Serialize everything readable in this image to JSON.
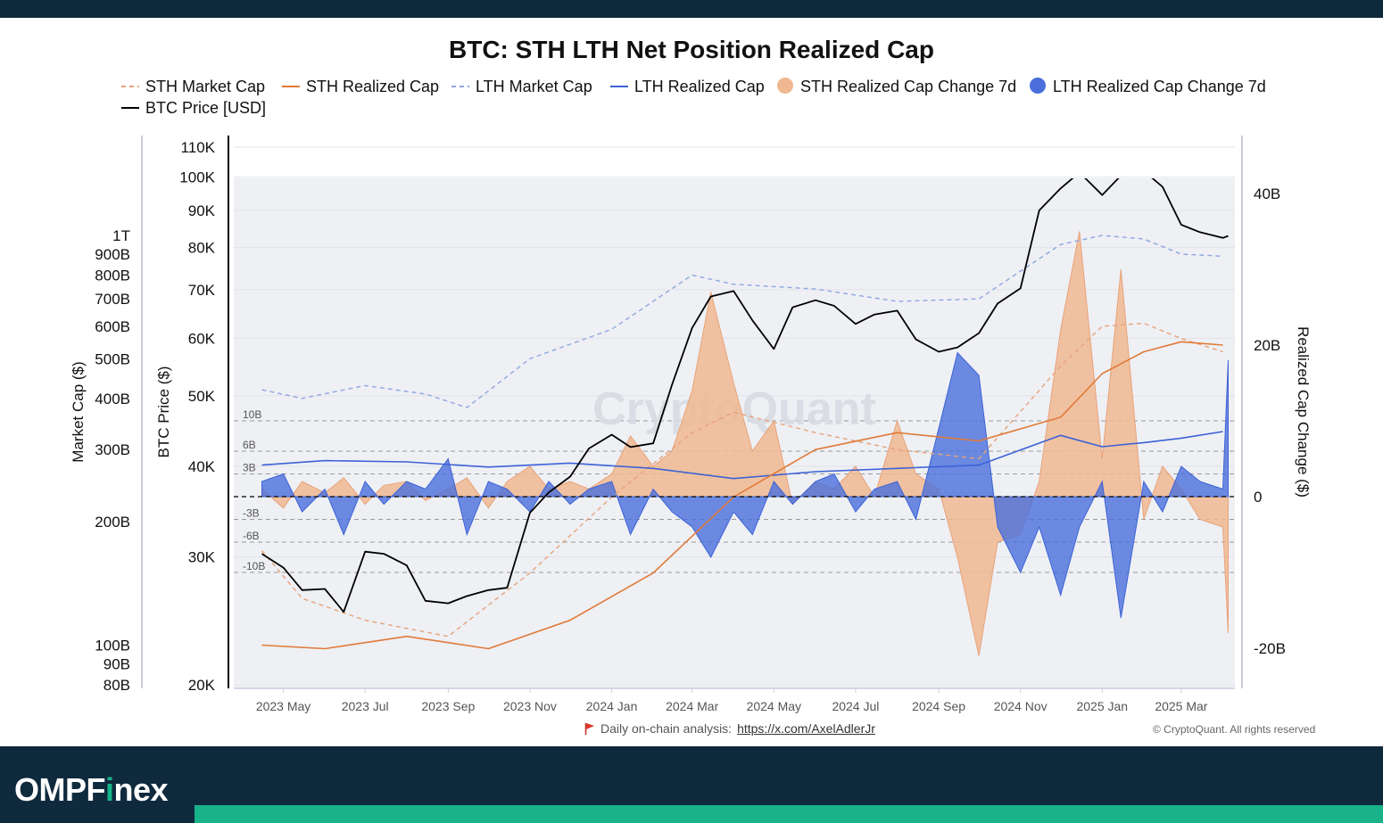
{
  "brand": {
    "name_a": "OMPF",
    "name_b": "i",
    "name_c": "nex",
    "accent_color": "#19b38a"
  },
  "footer": {
    "note": "Daily on-chain analysis:",
    "link": "https://x.com/AxelAdlerJr",
    "copyright": "© CryptoQuant. All rights reserved",
    "flag_icon": "red-flag-icon"
  },
  "chart_data": {
    "type": "line",
    "title": "BTC: STH LTH Net Position Realized Cap",
    "watermark": "CryptoQuant",
    "legend_position": "top",
    "legend": [
      {
        "name": "STH Market Cap",
        "style": "dashed-line",
        "color": "#e8a27a"
      },
      {
        "name": "STH Realized Cap",
        "style": "line",
        "color": "#e07a38"
      },
      {
        "name": "LTH Market Cap",
        "style": "dashed-line",
        "color": "#8fa6e0"
      },
      {
        "name": "LTH Realized Cap",
        "style": "line",
        "color": "#3d62d6"
      },
      {
        "name": "STH Realized Cap Change 7d",
        "style": "area",
        "color": "#f0b890"
      },
      {
        "name": "LTH Realized Cap Change 7d",
        "style": "area",
        "color": "#4a6fdc"
      },
      {
        "name": "BTC Price [USD]",
        "style": "line",
        "color": "#000000"
      }
    ],
    "x_ticks": [
      "2023 May",
      "2023 Jul",
      "2023 Sep",
      "2023 Nov",
      "2024 Jan",
      "2024 Mar",
      "2024 May",
      "2024 Jul",
      "2024 Sep",
      "2024 Nov",
      "2025 Jan",
      "2025 Mar"
    ],
    "axes": {
      "market_cap": {
        "label": "Market Cap ($)",
        "scale": "log",
        "ticks": [
          "1T",
          "900B",
          "800B",
          "700B",
          "600B",
          "500B",
          "400B",
          "300B",
          "200B",
          "100B",
          "90B",
          "80B"
        ]
      },
      "btc_price": {
        "label": "BTC Price ($)",
        "scale": "log",
        "ticks": [
          "110K",
          "100K",
          "90K",
          "80K",
          "70K",
          "60K",
          "50K",
          "40K",
          "30K",
          "20K"
        ]
      },
      "realized_change": {
        "label": "Realized Cap Change ($)",
        "ticks": [
          "40B",
          "20B",
          "0",
          "-20B"
        ],
        "ylim": [
          -25,
          45
        ]
      }
    },
    "reference_lines": [
      "10B",
      "6B",
      "3B",
      "-3B",
      "-6B",
      "-10B"
    ],
    "series": [
      {
        "name": "BTC Price [USD]",
        "unit": "USD",
        "x": [
          "2023-04-15",
          "2023-05-01",
          "2023-05-15",
          "2023-06-01",
          "2023-06-15",
          "2023-07-01",
          "2023-07-15",
          "2023-08-01",
          "2023-08-15",
          "2023-09-01",
          "2023-09-15",
          "2023-10-01",
          "2023-10-15",
          "2023-11-01",
          "2023-11-15",
          "2023-12-01",
          "2023-12-15",
          "2024-01-01",
          "2024-01-15",
          "2024-02-01",
          "2024-02-15",
          "2024-03-01",
          "2024-03-15",
          "2024-04-01",
          "2024-04-15",
          "2024-05-01",
          "2024-05-15",
          "2024-06-01",
          "2024-06-15",
          "2024-07-01",
          "2024-07-15",
          "2024-08-01",
          "2024-08-15",
          "2024-09-01",
          "2024-09-15",
          "2024-10-01",
          "2024-10-15",
          "2024-11-01",
          "2024-11-15",
          "2024-12-01",
          "2024-12-15",
          "2025-01-01",
          "2025-01-15",
          "2025-02-01",
          "2025-02-15",
          "2025-03-01",
          "2025-03-15",
          "2025-04-01",
          "2025-04-05"
        ],
        "values": [
          30300,
          29000,
          27000,
          27100,
          25200,
          30500,
          30300,
          29200,
          26100,
          25900,
          26500,
          27000,
          27200,
          34500,
          36800,
          38700,
          42300,
          44200,
          42500,
          43000,
          51800,
          62000,
          68500,
          69700,
          63500,
          58000,
          66200,
          67700,
          66500,
          62800,
          64700,
          65500,
          59800,
          57500,
          58300,
          61000,
          67000,
          70300,
          90000,
          96500,
          101500,
          94500,
          100500,
          102000,
          97000,
          86000,
          84000,
          82500,
          83000
        ]
      },
      {
        "name": "STH Market Cap",
        "unit": "USD",
        "x": [
          "2023-04-15",
          "2023-05-15",
          "2023-07-01",
          "2023-09-01",
          "2023-11-01",
          "2024-01-01",
          "2024-03-01",
          "2024-04-01",
          "2024-06-01",
          "2024-08-01",
          "2024-10-01",
          "2024-12-01",
          "2025-01-01",
          "2025-02-01",
          "2025-03-01",
          "2025-04-01"
        ],
        "values": [
          170000000000.0,
          130000000000.0,
          115000000000.0,
          105000000000.0,
          150000000000.0,
          230000000000.0,
          330000000000.0,
          370000000000.0,
          330000000000.0,
          300000000000.0,
          285000000000.0,
          480000000000.0,
          600000000000.0,
          610000000000.0,
          560000000000.0,
          520000000000.0
        ]
      },
      {
        "name": "STH Realized Cap",
        "unit": "USD",
        "x": [
          "2023-04-15",
          "2023-06-01",
          "2023-08-01",
          "2023-10-01",
          "2023-12-01",
          "2024-02-01",
          "2024-04-01",
          "2024-06-01",
          "2024-08-01",
          "2024-10-01",
          "2024-12-01",
          "2025-01-01",
          "2025-02-01",
          "2025-03-01",
          "2025-04-01"
        ],
        "values": [
          100000000000.0,
          98000000000.0,
          105000000000.0,
          98000000000.0,
          115000000000.0,
          150000000000.0,
          230000000000.0,
          300000000000.0,
          330000000000.0,
          315000000000.0,
          360000000000.0,
          460000000000.0,
          520000000000.0,
          550000000000.0,
          540000000000.0
        ]
      },
      {
        "name": "LTH Market Cap",
        "unit": "USD",
        "x": [
          "2023-04-15",
          "2023-05-15",
          "2023-07-01",
          "2023-08-15",
          "2023-09-15",
          "2023-11-01",
          "2024-01-01",
          "2024-03-01",
          "2024-04-01",
          "2024-06-01",
          "2024-08-01",
          "2024-10-01",
          "2024-12-01",
          "2025-01-01",
          "2025-02-01",
          "2025-03-01",
          "2025-04-01"
        ],
        "values": [
          420000000000.0,
          400000000000.0,
          430000000000.0,
          410000000000.0,
          380000000000.0,
          500000000000.0,
          590000000000.0,
          800000000000.0,
          760000000000.0,
          740000000000.0,
          690000000000.0,
          700000000000.0,
          950000000000.0,
          1000000000000.0,
          980000000000.0,
          900000000000.0,
          890000000000.0
        ]
      },
      {
        "name": "LTH Realized Cap",
        "unit": "USD",
        "x": [
          "2023-04-15",
          "2023-06-01",
          "2023-08-01",
          "2023-10-01",
          "2023-12-01",
          "2024-02-01",
          "2024-04-01",
          "2024-06-01",
          "2024-08-01",
          "2024-10-01",
          "2024-12-01",
          "2025-01-01",
          "2025-02-01",
          "2025-03-01",
          "2025-04-01"
        ],
        "values": [
          275000000000.0,
          282000000000.0,
          280000000000.0,
          272000000000.0,
          278000000000.0,
          270000000000.0,
          255000000000.0,
          265000000000.0,
          270000000000.0,
          275000000000.0,
          325000000000.0,
          305000000000.0,
          312000000000.0,
          320000000000.0,
          332000000000.0
        ]
      },
      {
        "name": "STH Realized Cap Change 7d",
        "unit": "USD",
        "x": [
          "2023-04-15",
          "2023-05-01",
          "2023-05-15",
          "2023-06-01",
          "2023-06-15",
          "2023-07-01",
          "2023-07-15",
          "2023-08-01",
          "2023-08-15",
          "2023-09-01",
          "2023-09-15",
          "2023-10-01",
          "2023-10-15",
          "2023-11-01",
          "2023-11-15",
          "2023-12-01",
          "2023-12-15",
          "2024-01-01",
          "2024-01-15",
          "2024-02-01",
          "2024-02-15",
          "2024-03-01",
          "2024-03-15",
          "2024-04-01",
          "2024-04-15",
          "2024-05-01",
          "2024-05-15",
          "2024-06-01",
          "2024-06-15",
          "2024-07-01",
          "2024-07-15",
          "2024-08-01",
          "2024-08-15",
          "2024-09-01",
          "2024-09-15",
          "2024-10-01",
          "2024-10-15",
          "2024-11-01",
          "2024-11-15",
          "2024-12-01",
          "2024-12-15",
          "2025-01-01",
          "2025-01-15",
          "2025-02-01",
          "2025-02-15",
          "2025-03-01",
          "2025-03-15",
          "2025-04-01",
          "2025-04-05"
        ],
        "values": [
          1,
          -1.5,
          2,
          0.5,
          2.5,
          -1,
          1.5,
          2,
          -0.5,
          1,
          2.5,
          -1.5,
          2,
          4,
          1,
          2,
          1,
          3,
          8,
          4,
          6,
          14,
          27,
          15,
          6,
          10,
          -1,
          2,
          1,
          4,
          0,
          10,
          3,
          1,
          -8,
          -21,
          -6,
          -5,
          2,
          22,
          35,
          5,
          30,
          -3,
          4,
          1,
          -3,
          -4,
          -18
        ]
      },
      {
        "name": "LTH Realized Cap Change 7d",
        "unit": "USD",
        "x": [
          "2023-04-15",
          "2023-05-01",
          "2023-05-15",
          "2023-06-01",
          "2023-06-15",
          "2023-07-01",
          "2023-07-15",
          "2023-08-01",
          "2023-08-15",
          "2023-09-01",
          "2023-09-15",
          "2023-10-01",
          "2023-10-15",
          "2023-11-01",
          "2023-11-15",
          "2023-12-01",
          "2023-12-15",
          "2024-01-01",
          "2024-01-15",
          "2024-02-01",
          "2024-02-15",
          "2024-03-01",
          "2024-03-15",
          "2024-04-01",
          "2024-04-15",
          "2024-05-01",
          "2024-05-15",
          "2024-06-01",
          "2024-06-15",
          "2024-07-01",
          "2024-07-15",
          "2024-08-01",
          "2024-08-15",
          "2024-09-01",
          "2024-09-15",
          "2024-10-01",
          "2024-10-15",
          "2024-11-01",
          "2024-11-15",
          "2024-12-01",
          "2024-12-15",
          "2025-01-01",
          "2025-01-15",
          "2025-02-01",
          "2025-02-15",
          "2025-03-01",
          "2025-03-15",
          "2025-04-01",
          "2025-04-05"
        ],
        "values": [
          2,
          3,
          -2,
          1,
          -5,
          2,
          -1,
          2,
          1,
          5,
          -5,
          2,
          1,
          -2,
          2,
          -1,
          1,
          2,
          -5,
          1,
          -2,
          -4,
          -8,
          -2,
          -5,
          2,
          -1,
          2,
          3,
          -2,
          1,
          2,
          -3,
          9,
          19,
          16,
          -4,
          -10,
          -4,
          -13,
          -4,
          2,
          -16,
          2,
          -2,
          4,
          2,
          1,
          18
        ]
      }
    ]
  }
}
